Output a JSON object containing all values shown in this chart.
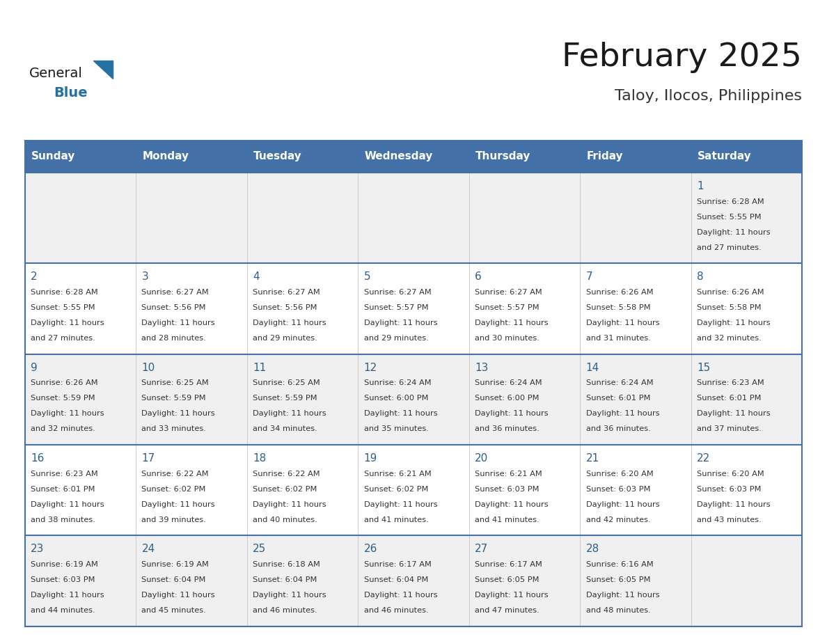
{
  "title": "February 2025",
  "subtitle": "Taloy, Ilocos, Philippines",
  "days_of_week": [
    "Sunday",
    "Monday",
    "Tuesday",
    "Wednesday",
    "Thursday",
    "Friday",
    "Saturday"
  ],
  "header_bg": "#4472a8",
  "header_text_color": "#ffffff",
  "row_bg_even": "#f0f0f0",
  "row_bg_odd": "#ffffff",
  "cell_text_color": "#333333",
  "day_num_color": "#2c5f8a",
  "separator_color": "#4472a8",
  "title_color": "#1a1a1a",
  "subtitle_color": "#333333",
  "logo_general_color": "#1a1a1a",
  "logo_blue_color": "#2471a3",
  "calendar": [
    [
      {
        "day": 0,
        "info": ""
      },
      {
        "day": 0,
        "info": ""
      },
      {
        "day": 0,
        "info": ""
      },
      {
        "day": 0,
        "info": ""
      },
      {
        "day": 0,
        "info": ""
      },
      {
        "day": 0,
        "info": ""
      },
      {
        "day": 1,
        "info": "Sunrise: 6:28 AM\nSunset: 5:55 PM\nDaylight: 11 hours\nand 27 minutes."
      }
    ],
    [
      {
        "day": 2,
        "info": "Sunrise: 6:28 AM\nSunset: 5:55 PM\nDaylight: 11 hours\nand 27 minutes."
      },
      {
        "day": 3,
        "info": "Sunrise: 6:27 AM\nSunset: 5:56 PM\nDaylight: 11 hours\nand 28 minutes."
      },
      {
        "day": 4,
        "info": "Sunrise: 6:27 AM\nSunset: 5:56 PM\nDaylight: 11 hours\nand 29 minutes."
      },
      {
        "day": 5,
        "info": "Sunrise: 6:27 AM\nSunset: 5:57 PM\nDaylight: 11 hours\nand 29 minutes."
      },
      {
        "day": 6,
        "info": "Sunrise: 6:27 AM\nSunset: 5:57 PM\nDaylight: 11 hours\nand 30 minutes."
      },
      {
        "day": 7,
        "info": "Sunrise: 6:26 AM\nSunset: 5:58 PM\nDaylight: 11 hours\nand 31 minutes."
      },
      {
        "day": 8,
        "info": "Sunrise: 6:26 AM\nSunset: 5:58 PM\nDaylight: 11 hours\nand 32 minutes."
      }
    ],
    [
      {
        "day": 9,
        "info": "Sunrise: 6:26 AM\nSunset: 5:59 PM\nDaylight: 11 hours\nand 32 minutes."
      },
      {
        "day": 10,
        "info": "Sunrise: 6:25 AM\nSunset: 5:59 PM\nDaylight: 11 hours\nand 33 minutes."
      },
      {
        "day": 11,
        "info": "Sunrise: 6:25 AM\nSunset: 5:59 PM\nDaylight: 11 hours\nand 34 minutes."
      },
      {
        "day": 12,
        "info": "Sunrise: 6:24 AM\nSunset: 6:00 PM\nDaylight: 11 hours\nand 35 minutes."
      },
      {
        "day": 13,
        "info": "Sunrise: 6:24 AM\nSunset: 6:00 PM\nDaylight: 11 hours\nand 36 minutes."
      },
      {
        "day": 14,
        "info": "Sunrise: 6:24 AM\nSunset: 6:01 PM\nDaylight: 11 hours\nand 36 minutes."
      },
      {
        "day": 15,
        "info": "Sunrise: 6:23 AM\nSunset: 6:01 PM\nDaylight: 11 hours\nand 37 minutes."
      }
    ],
    [
      {
        "day": 16,
        "info": "Sunrise: 6:23 AM\nSunset: 6:01 PM\nDaylight: 11 hours\nand 38 minutes."
      },
      {
        "day": 17,
        "info": "Sunrise: 6:22 AM\nSunset: 6:02 PM\nDaylight: 11 hours\nand 39 minutes."
      },
      {
        "day": 18,
        "info": "Sunrise: 6:22 AM\nSunset: 6:02 PM\nDaylight: 11 hours\nand 40 minutes."
      },
      {
        "day": 19,
        "info": "Sunrise: 6:21 AM\nSunset: 6:02 PM\nDaylight: 11 hours\nand 41 minutes."
      },
      {
        "day": 20,
        "info": "Sunrise: 6:21 AM\nSunset: 6:03 PM\nDaylight: 11 hours\nand 41 minutes."
      },
      {
        "day": 21,
        "info": "Sunrise: 6:20 AM\nSunset: 6:03 PM\nDaylight: 11 hours\nand 42 minutes."
      },
      {
        "day": 22,
        "info": "Sunrise: 6:20 AM\nSunset: 6:03 PM\nDaylight: 11 hours\nand 43 minutes."
      }
    ],
    [
      {
        "day": 23,
        "info": "Sunrise: 6:19 AM\nSunset: 6:03 PM\nDaylight: 11 hours\nand 44 minutes."
      },
      {
        "day": 24,
        "info": "Sunrise: 6:19 AM\nSunset: 6:04 PM\nDaylight: 11 hours\nand 45 minutes."
      },
      {
        "day": 25,
        "info": "Sunrise: 6:18 AM\nSunset: 6:04 PM\nDaylight: 11 hours\nand 46 minutes."
      },
      {
        "day": 26,
        "info": "Sunrise: 6:17 AM\nSunset: 6:04 PM\nDaylight: 11 hours\nand 46 minutes."
      },
      {
        "day": 27,
        "info": "Sunrise: 6:17 AM\nSunset: 6:05 PM\nDaylight: 11 hours\nand 47 minutes."
      },
      {
        "day": 28,
        "info": "Sunrise: 6:16 AM\nSunset: 6:05 PM\nDaylight: 11 hours\nand 48 minutes."
      },
      {
        "day": 0,
        "info": ""
      }
    ]
  ]
}
